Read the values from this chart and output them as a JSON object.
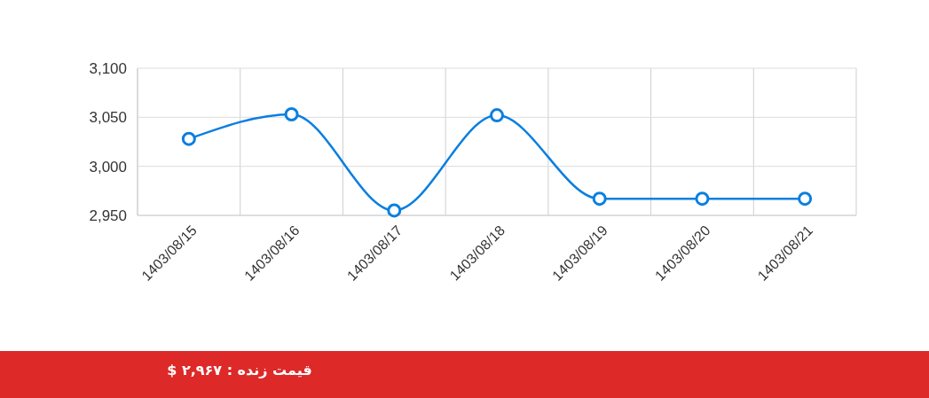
{
  "chart_data": {
    "type": "line",
    "categories": [
      "1403/08/15",
      "1403/08/16",
      "1403/08/17",
      "1403/08/18",
      "1403/08/19",
      "1403/08/20",
      "1403/08/21"
    ],
    "series": [
      {
        "color": "#0a7fe0",
        "values": [
          3028,
          3053,
          2955,
          3052,
          2967,
          2967,
          2967
        ]
      }
    ],
    "ylim": [
      2950,
      3100
    ],
    "yticks": [
      {
        "value": 2950,
        "label": "2,950"
      },
      {
        "value": 3000,
        "label": "3,000"
      },
      {
        "value": 3050,
        "label": "3,050"
      },
      {
        "value": 3100,
        "label": "3,100"
      }
    ],
    "grid": true,
    "marker": "circle",
    "line_style": "solid",
    "annotations": [
      "قیمت زنده : ۲,۹۶۷ $"
    ]
  }
}
